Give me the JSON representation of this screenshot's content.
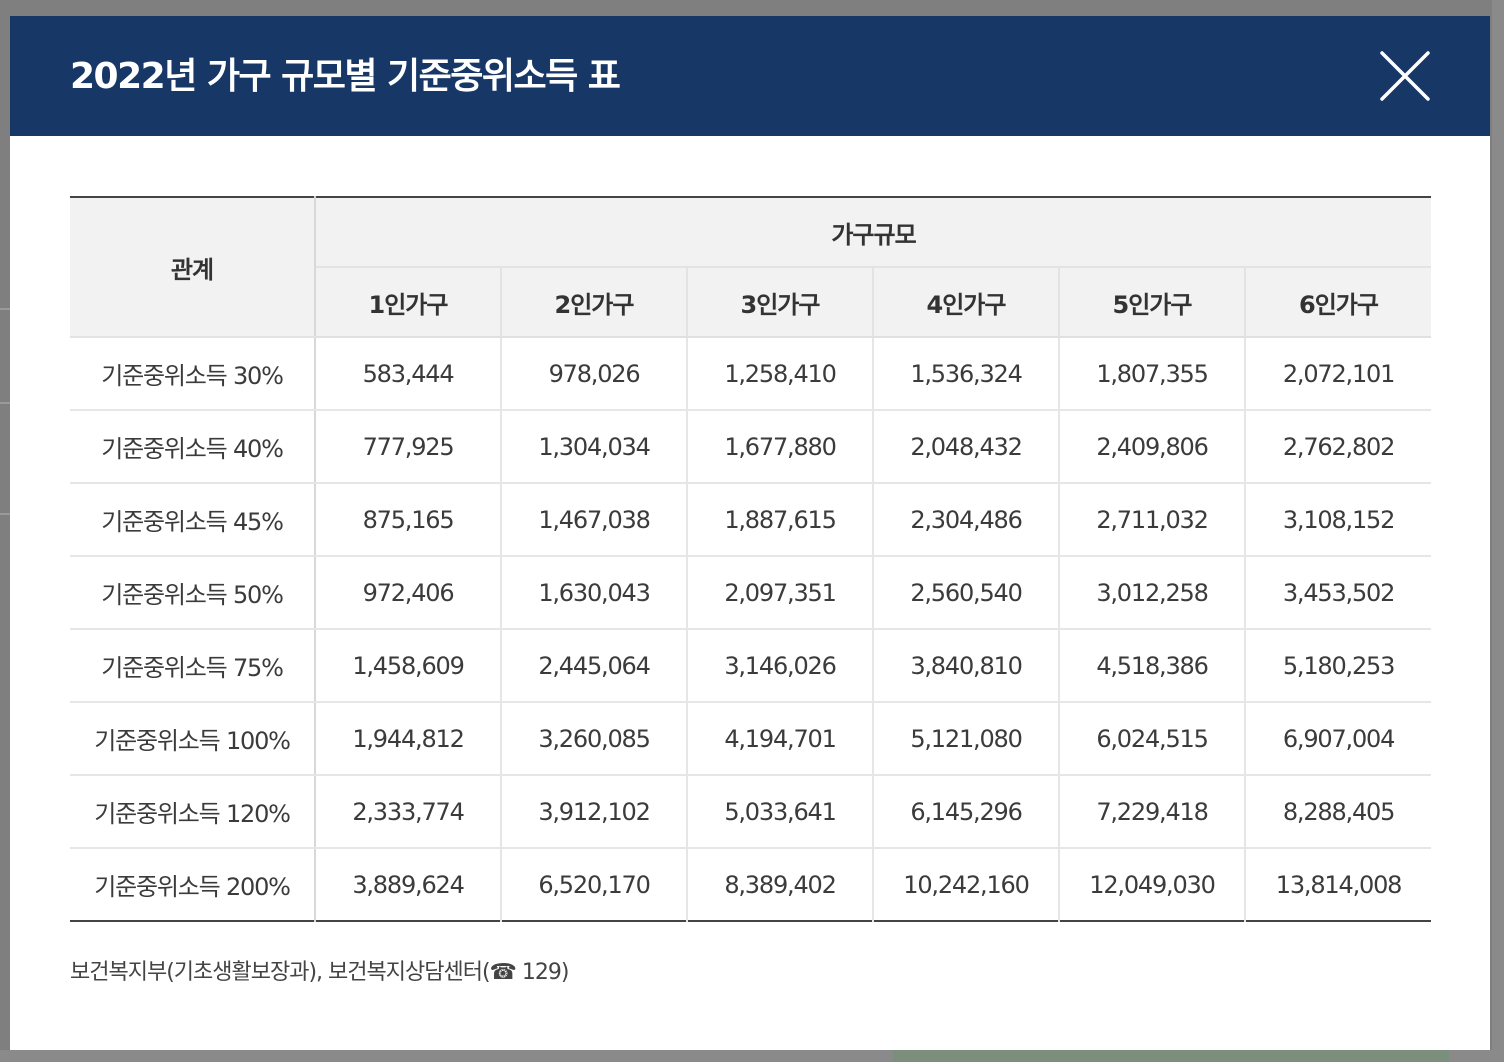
{
  "modal": {
    "title": "2022년 가구 규모별 기준중위소득 표",
    "close_icon": "close-icon",
    "colors": {
      "header_bg": "#173766",
      "header_text": "#ffffff",
      "table_head_bg": "#f2f2f2",
      "overlay": "#7f7f7f"
    }
  },
  "table": {
    "row_header": "관계",
    "group_header": "가구규모",
    "columns": [
      "1인가구",
      "2인가구",
      "3인가구",
      "4인가구",
      "5인가구",
      "6인가구"
    ],
    "rows": [
      {
        "label": "기준중위소득 30%",
        "values": [
          "583,444",
          "978,026",
          "1,258,410",
          "1,536,324",
          "1,807,355",
          "2,072,101"
        ]
      },
      {
        "label": "기준중위소득 40%",
        "values": [
          "777,925",
          "1,304,034",
          "1,677,880",
          "2,048,432",
          "2,409,806",
          "2,762,802"
        ]
      },
      {
        "label": "기준중위소득 45%",
        "values": [
          "875,165",
          "1,467,038",
          "1,887,615",
          "2,304,486",
          "2,711,032",
          "3,108,152"
        ]
      },
      {
        "label": "기준중위소득 50%",
        "values": [
          "972,406",
          "1,630,043",
          "2,097,351",
          "2,560,540",
          "3,012,258",
          "3,453,502"
        ]
      },
      {
        "label": "기준중위소득 75%",
        "values": [
          "1,458,609",
          "2,445,064",
          "3,146,026",
          "3,840,810",
          "4,518,386",
          "5,180,253"
        ]
      },
      {
        "label": "기준중위소득 100%",
        "values": [
          "1,944,812",
          "3,260,085",
          "4,194,701",
          "5,121,080",
          "6,024,515",
          "6,907,004"
        ]
      },
      {
        "label": "기준중위소득 120%",
        "values": [
          "2,333,774",
          "3,912,102",
          "5,033,641",
          "6,145,296",
          "7,229,418",
          "8,288,405"
        ]
      },
      {
        "label": "기준중위소득 200%",
        "values": [
          "3,889,624",
          "6,520,170",
          "8,389,402",
          "10,242,160",
          "12,049,030",
          "13,814,008"
        ]
      }
    ]
  },
  "footnote": "보건복지부(기초생활보장과), 보건복지상담센터(☎ 129)"
}
